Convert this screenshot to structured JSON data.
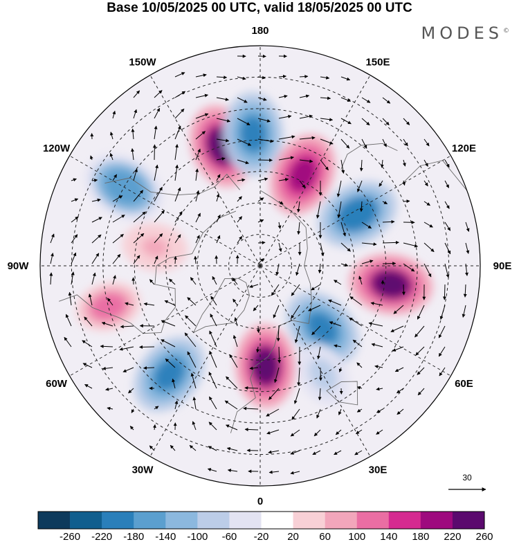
{
  "title": "Base 10/05/2025 00 UTC, valid 18/05/2025 00 UTC",
  "brand": "MODES",
  "brand_mark": "©",
  "longitude_labels": [
    "180",
    "150E",
    "120E",
    "90E",
    "60E",
    "30E",
    "0",
    "30W",
    "60W",
    "90W",
    "120W",
    "150W"
  ],
  "reference_vector": "30",
  "colorbar": {
    "ticks": [
      "-260",
      "-220",
      "-180",
      "-140",
      "-100",
      "-60",
      "-20",
      "20",
      "60",
      "100",
      "140",
      "180",
      "220",
      "260"
    ],
    "colors": [
      "#0d3a5c",
      "#105e8e",
      "#2a7fba",
      "#5b9fcf",
      "#8cb8de",
      "#bccde8",
      "#e3e3f2",
      "#ffffff",
      "#f8d0d6",
      "#f2a6bb",
      "#ea6ea3",
      "#d52a90",
      "#9e0a7e",
      "#5b0a6e"
    ]
  },
  "anomaly_centers": [
    {
      "lon": -162,
      "lat": 50,
      "value": 230
    },
    {
      "lon": -177,
      "lat": 48,
      "value": -200
    },
    {
      "lon": 155,
      "lat": 58,
      "value": 200
    },
    {
      "lon": 118,
      "lat": 55,
      "value": -220
    },
    {
      "lon": 82,
      "lat": 48,
      "value": 230
    },
    {
      "lon": 45,
      "lat": 62,
      "value": -210
    },
    {
      "lon": 3,
      "lat": 58,
      "value": 230
    },
    {
      "lon": -40,
      "lat": 45,
      "value": -210
    },
    {
      "lon": -120,
      "lat": 40,
      "value": -170
    },
    {
      "lon": -75,
      "lat": 40,
      "value": 120
    },
    {
      "lon": -100,
      "lat": 56,
      "value": 60
    },
    {
      "lon": 30,
      "lat": 50,
      "value": -100
    }
  ]
}
